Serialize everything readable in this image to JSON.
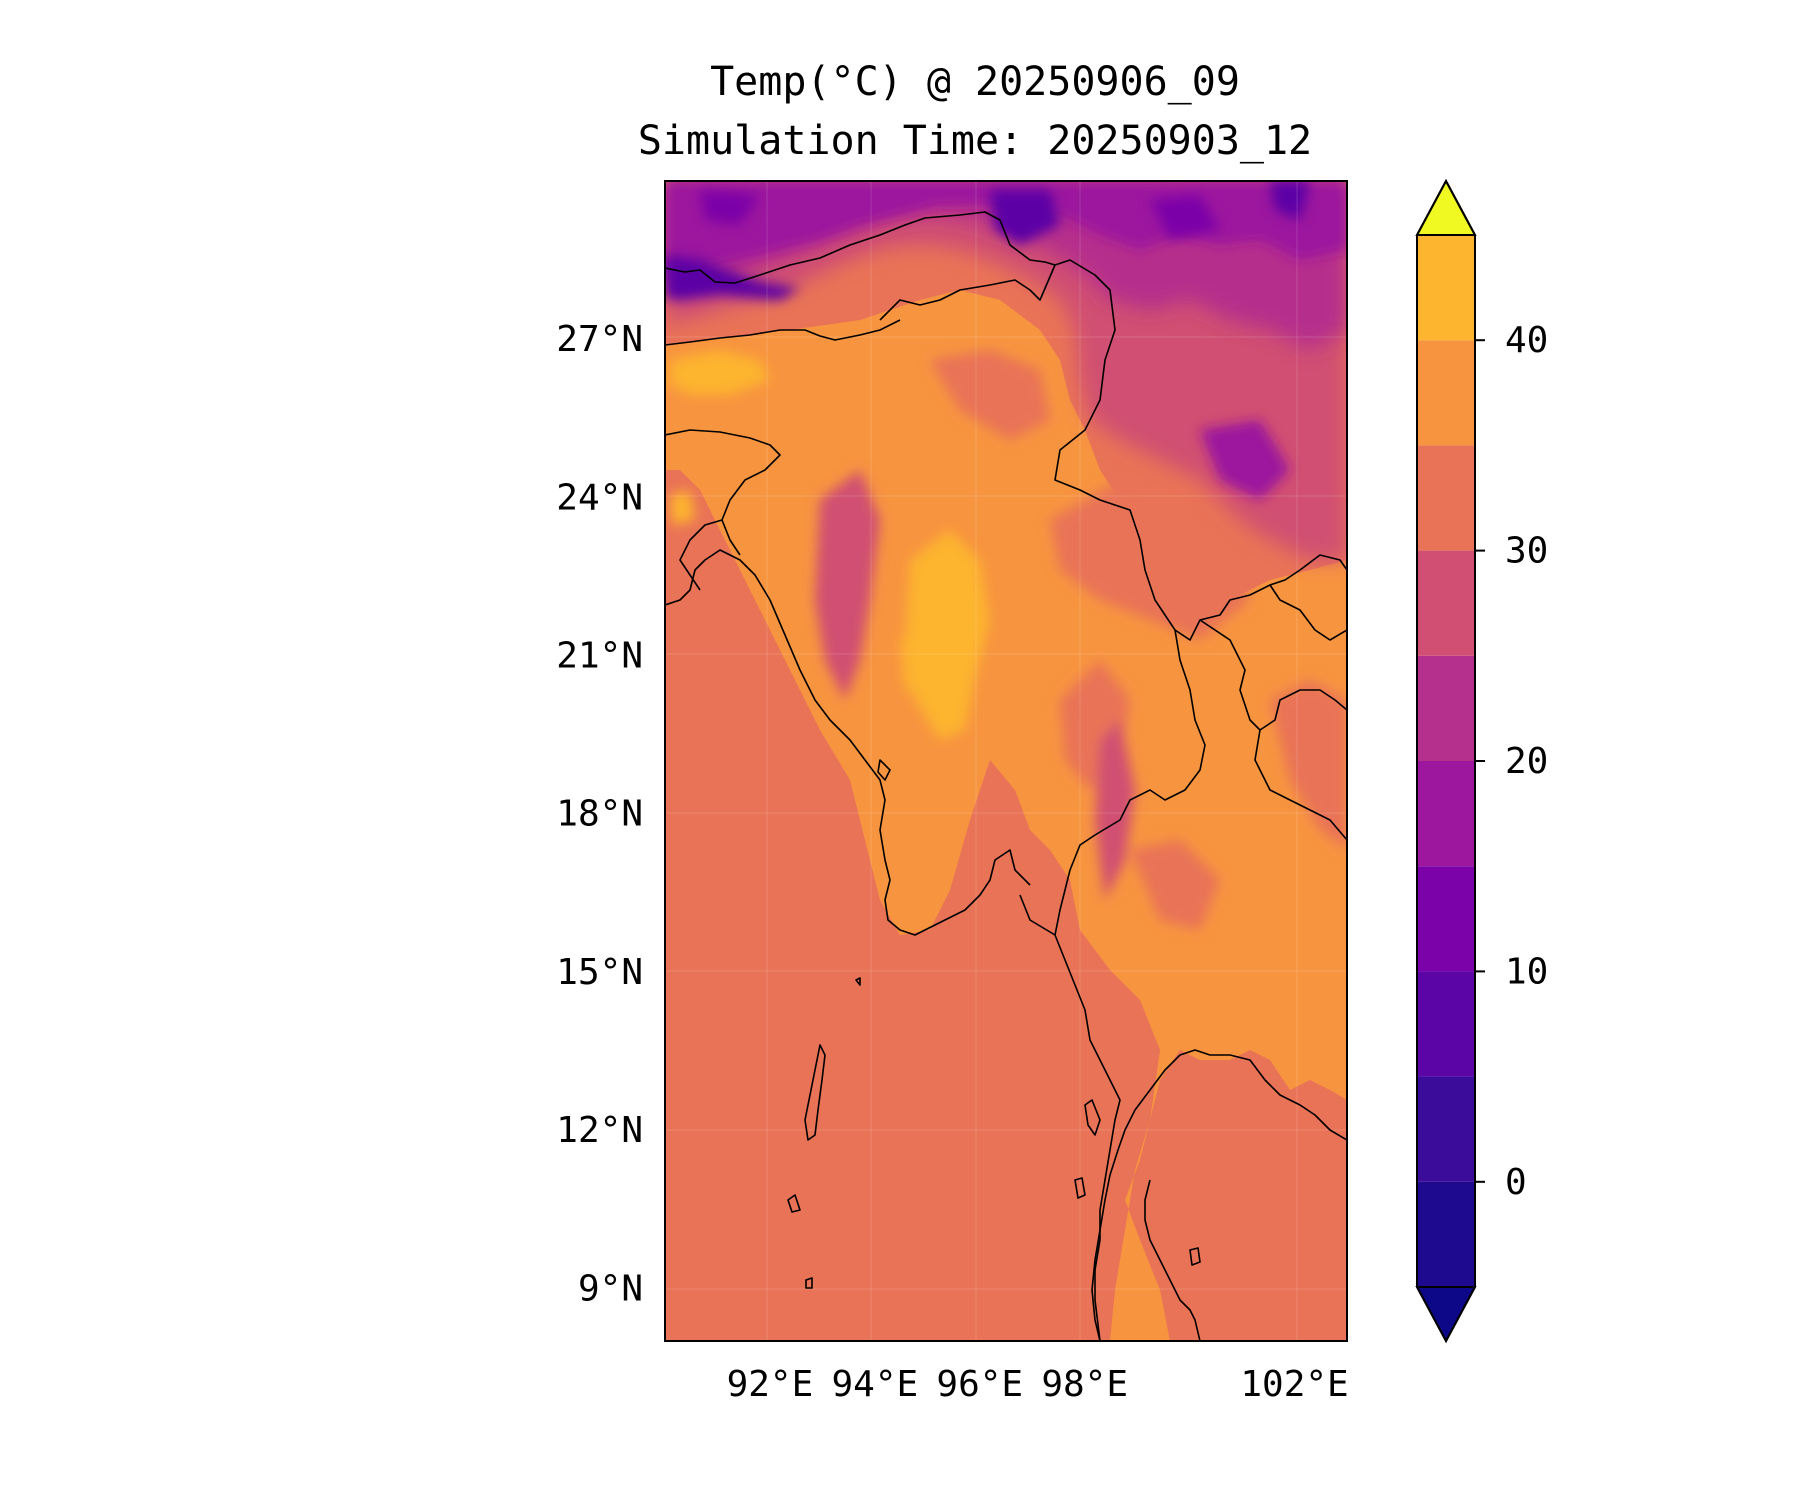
{
  "title_line1": "Temp(°C) @ 20250906_09",
  "title_line2": "Simulation Time: 20250903_12",
  "map": {
    "lat_range": [
      8,
      30
    ],
    "lon_range": [
      90,
      103
    ],
    "lat_ticks": [
      {
        "value": 9,
        "label": "9°N"
      },
      {
        "value": 12,
        "label": "12°N"
      },
      {
        "value": 15,
        "label": "15°N"
      },
      {
        "value": 18,
        "label": "18°N"
      },
      {
        "value": 21,
        "label": "21°N"
      },
      {
        "value": 24,
        "label": "24°N"
      },
      {
        "value": 27,
        "label": "27°N"
      }
    ],
    "lon_ticks": [
      {
        "value": 92,
        "label": "92°E"
      },
      {
        "value": 94,
        "label": "94°E"
      },
      {
        "value": 96,
        "label": "96°E"
      },
      {
        "value": 98,
        "label": "98°E"
      },
      {
        "value": 102,
        "label": "102°E"
      }
    ],
    "gridlines": true
  },
  "colorbar": {
    "min": -5,
    "max": 45,
    "extend": "both",
    "levels": [
      -5,
      0,
      5,
      10,
      15,
      20,
      25,
      30,
      35,
      40,
      45
    ],
    "colors": [
      "#1e0a8e",
      "#3b0b9a",
      "#5c05a6",
      "#7b02a8",
      "#9c179e",
      "#b52f8c",
      "#d04f72",
      "#e97356",
      "#f79440",
      "#fdb42f",
      "#f2e51d"
    ],
    "under_color": "#0d0887",
    "over_color": "#f0f921",
    "ticks": [
      {
        "value": 0,
        "label": "0"
      },
      {
        "value": 10,
        "label": "10"
      },
      {
        "value": 20,
        "label": "20"
      },
      {
        "value": 30,
        "label": "30"
      },
      {
        "value": 40,
        "label": "40"
      }
    ]
  }
}
